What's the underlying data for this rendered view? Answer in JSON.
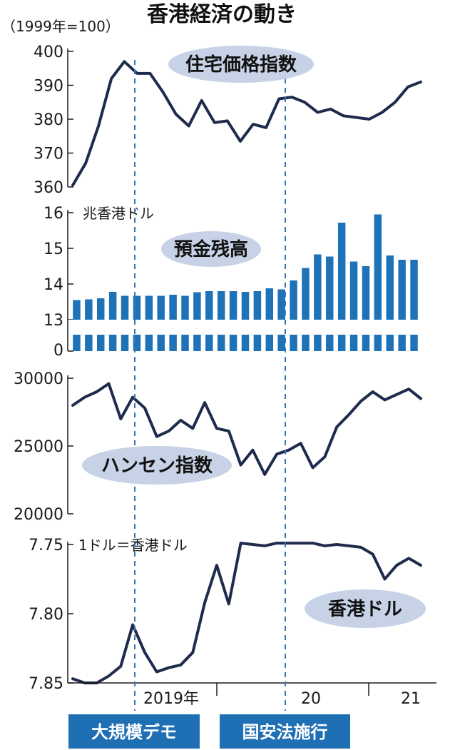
{
  "title": "香港経済の動き",
  "base_note": "（1999年=100）",
  "colors": {
    "line": "#1f2b4d",
    "bar": "#1e72b8",
    "pill": "#c7d2e6",
    "event": "#1e6fb3",
    "guide": "#3a74b8"
  },
  "x_labels": [
    "2019年",
    "20",
    "21"
  ],
  "events": [
    {
      "label": "大規模デモ",
      "index": 5
    },
    {
      "label": "国安法施行",
      "index": 17
    }
  ],
  "chart_data": [
    {
      "type": "line",
      "name_label": "住宅価格指数",
      "unit": "",
      "ylim": [
        360,
        400
      ],
      "yticks": [
        360,
        370,
        380,
        390,
        400
      ],
      "values": [
        360.5,
        367,
        378,
        392,
        397,
        393.5,
        393.5,
        388,
        381.5,
        378,
        385.5,
        379,
        379.5,
        373.5,
        378.5,
        377.5,
        386,
        386.5,
        385,
        382,
        383,
        381,
        380.5,
        380,
        382,
        385,
        389.5,
        391
      ]
    },
    {
      "type": "bar",
      "name_label": "預金残高",
      "unit": "兆香港ドル",
      "ylim": [
        13,
        16
      ],
      "yticks": [
        13,
        14,
        15,
        16
      ],
      "zero_tick": "0",
      "values": [
        13.55,
        13.57,
        13.6,
        13.78,
        13.67,
        13.67,
        13.67,
        13.67,
        13.7,
        13.67,
        13.77,
        13.8,
        13.8,
        13.8,
        13.78,
        13.8,
        13.88,
        13.85,
        14.1,
        14.45,
        14.83,
        14.77,
        15.72,
        14.63,
        14.5,
        15.95,
        14.8,
        14.68,
        14.68
      ]
    },
    {
      "type": "line",
      "name_label": "ハンセン指数",
      "unit": "",
      "ylim": [
        20000,
        30000
      ],
      "yticks": [
        20000,
        25000,
        30000
      ],
      "values": [
        28000,
        28600,
        29000,
        29600,
        27000,
        28600,
        27800,
        25700,
        26100,
        26900,
        26300,
        28200,
        26300,
        26100,
        23600,
        24700,
        22900,
        24400,
        24700,
        25200,
        23400,
        24200,
        26400,
        27300,
        28300,
        29000,
        28400,
        28800,
        29200,
        28500
      ]
    },
    {
      "type": "line",
      "name_label": "香港ドル",
      "unit": "1ドル＝香港ドル",
      "ylim": [
        7.85,
        7.75
      ],
      "yticks": [
        7.75,
        7.8,
        7.85
      ],
      "ytick_labels": [
        "7.75",
        "7.80",
        "7.85"
      ],
      "values": [
        7.847,
        7.85,
        7.85,
        7.845,
        7.838,
        7.808,
        7.828,
        7.842,
        7.839,
        7.837,
        7.828,
        7.792,
        7.765,
        7.793,
        7.749,
        7.75,
        7.751,
        7.749,
        7.749,
        7.749,
        7.749,
        7.751,
        7.75,
        7.751,
        7.752,
        7.757,
        7.775,
        7.765,
        7.76,
        7.765
      ]
    }
  ]
}
